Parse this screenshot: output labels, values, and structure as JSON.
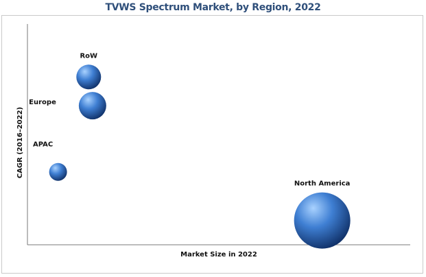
{
  "chart_data": {
    "type": "scatter",
    "title": "TVWS Spectrum Market, by Region, 2022",
    "xlabel": "Market Size in 2022",
    "ylabel": "CAGR (2016–2022)",
    "xlim": [
      0,
      100
    ],
    "ylim": [
      0,
      100
    ],
    "grid": false,
    "legend": "none",
    "points": [
      {
        "label": "RoW",
        "x": 16,
        "y": 76,
        "size": 18
      },
      {
        "label": "Europe",
        "x": 17,
        "y": 63,
        "size": 20
      },
      {
        "label": "APAC",
        "x": 8,
        "y": 33,
        "size": 13
      },
      {
        "label": "North America",
        "x": 77,
        "y": 11,
        "size": 41
      }
    ],
    "colors": {
      "bubble_light": "#a9d2ff",
      "bubble_mid": "#3f7fd3",
      "bubble_dark": "#0f2f66",
      "axis": "#7a7a7a",
      "title": "#2f4f7a"
    }
  }
}
